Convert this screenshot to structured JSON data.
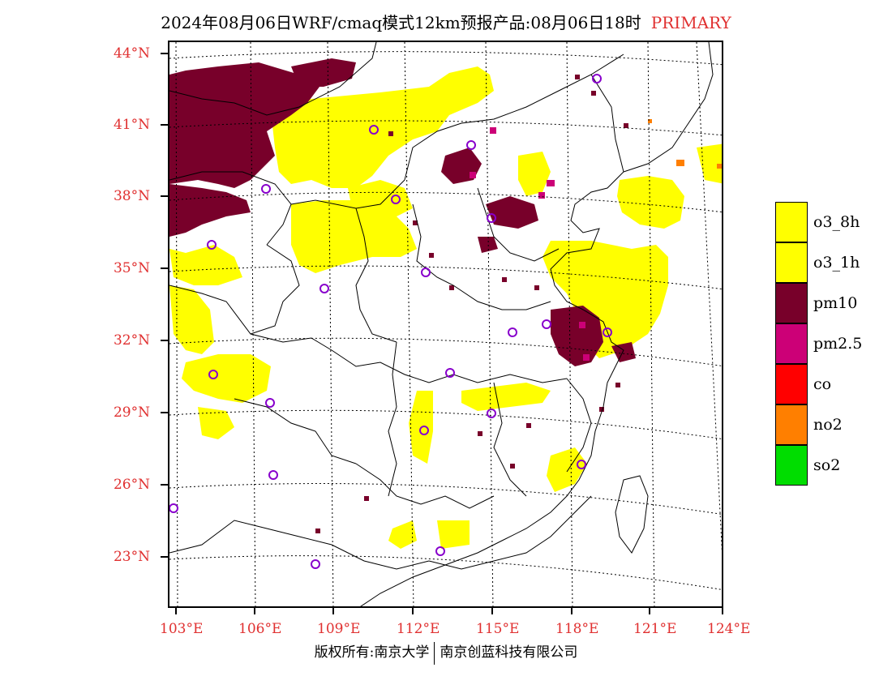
{
  "header": {
    "title": "2024年08月06日WRF/cmaq模式12km预报产品:08月06日18时",
    "tag": "PRIMARY",
    "tag_color": "#e03030"
  },
  "axes": {
    "lat_labels": [
      "44°N",
      "41°N",
      "38°N",
      "35°N",
      "32°N",
      "29°N",
      "26°N",
      "23°N"
    ],
    "lon_labels": [
      "103°E",
      "106°E",
      "109°E",
      "112°E",
      "115°E",
      "118°E",
      "121°E",
      "124°E"
    ],
    "label_color": "#e03030"
  },
  "legend": {
    "items": [
      {
        "label": "o3_8h",
        "color": "#ffff00"
      },
      {
        "label": "o3_1h",
        "color": "#ffff00"
      },
      {
        "label": "pm10",
        "color": "#78002a"
      },
      {
        "label": "pm2.5",
        "color": "#cc0077"
      },
      {
        "label": "co",
        "color": "#ff0000"
      },
      {
        "label": "no2",
        "color": "#ff7f00"
      },
      {
        "label": "so2",
        "color": "#00dd00"
      }
    ]
  },
  "footer": {
    "copyright": "版权所有:南京大学",
    "company": "南京创蓝科技有限公司"
  }
}
